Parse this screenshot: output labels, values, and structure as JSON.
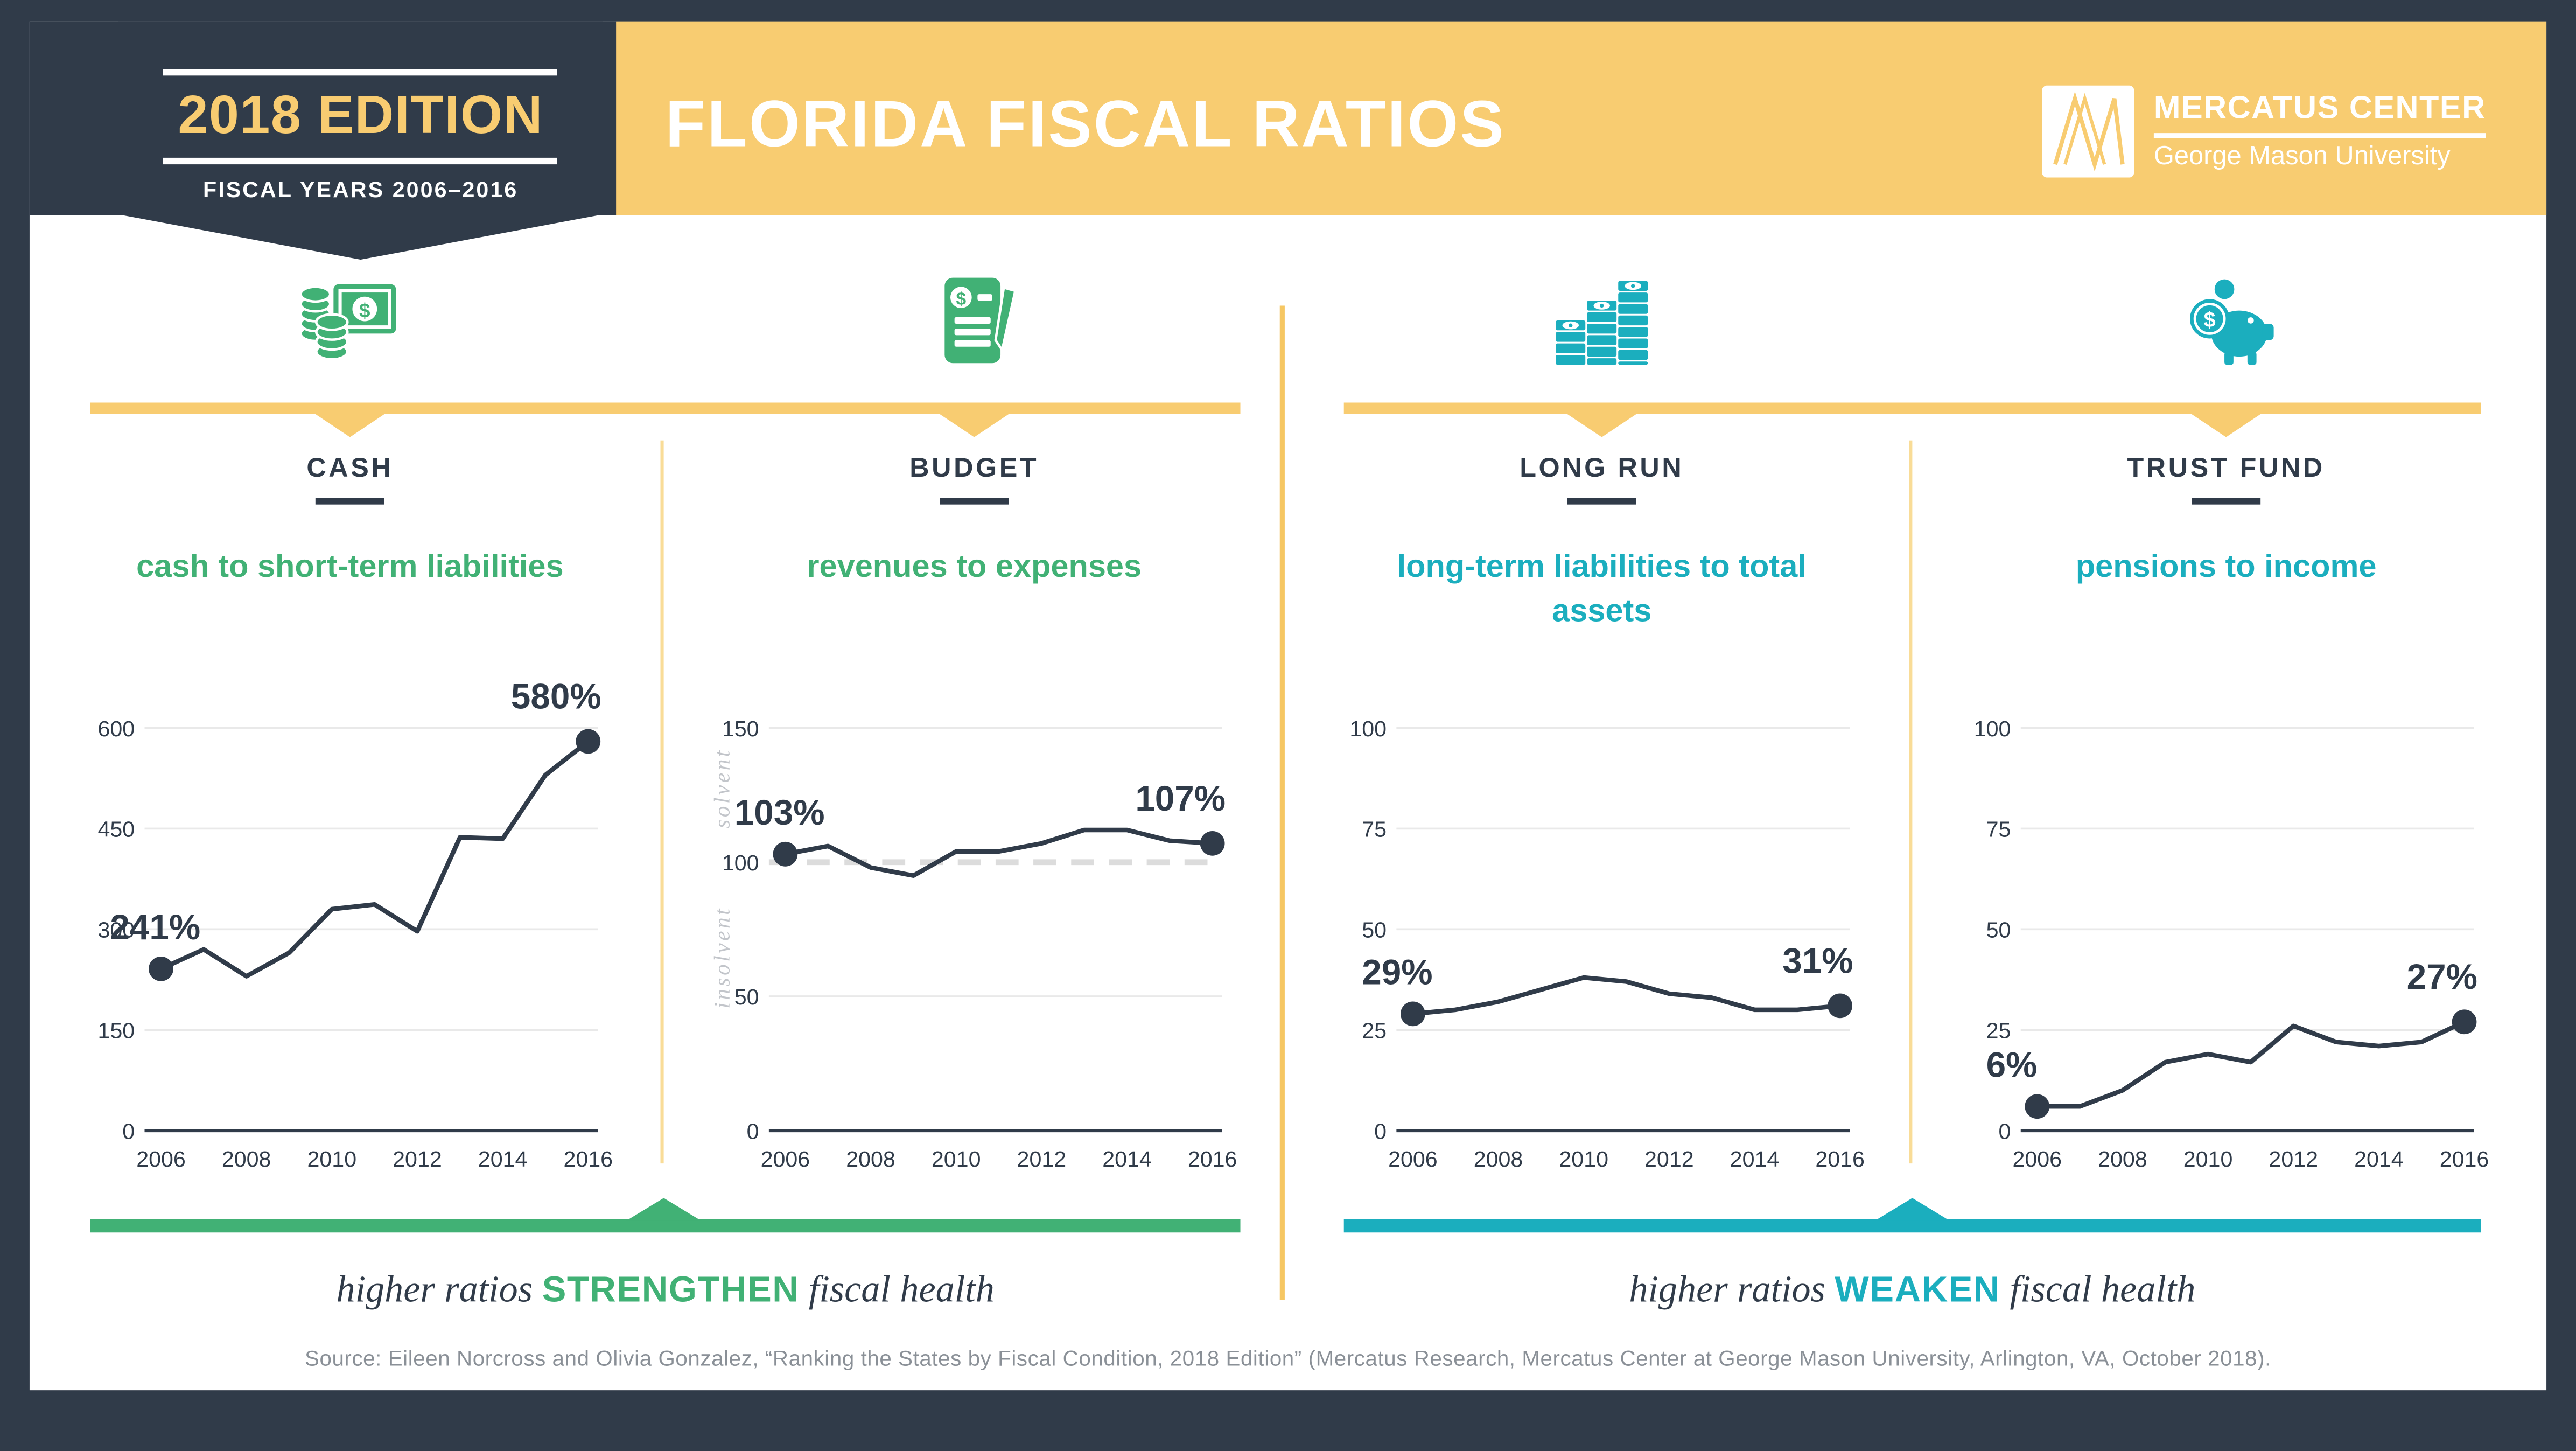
{
  "colors": {
    "navy": "#303B49",
    "yellow": "#F8CC71",
    "green": "#41B175",
    "teal": "#1BAEBE",
    "gridline": "#E9E9E9",
    "dashed_line": "#DCDCDC",
    "source_gray": "#8A9097"
  },
  "ribbon": {
    "title": "2018 EDITION",
    "subtitle": "FISCAL YEARS 2006–2016"
  },
  "header": {
    "title": "FLORIDA FISCAL RATIOS",
    "logo": {
      "line1": "MERCATUS CENTER",
      "line2": "George Mason University"
    }
  },
  "sections": [
    {
      "id": "cash",
      "label": "CASH",
      "subtitle": "cash to short-term liabilities",
      "accent": "green",
      "icon": "coins-and-dollar-bill"
    },
    {
      "id": "budget",
      "label": "BUDGET",
      "subtitle": "revenues to expenses",
      "accent": "green",
      "icon": "ledger-document-and-pen"
    },
    {
      "id": "long-run",
      "label": "LONG RUN",
      "subtitle": "long-term liabilities to total assets",
      "accent": "teal",
      "icon": "ascending-cash-stacks"
    },
    {
      "id": "trust-fund",
      "label": "TRUST FUND",
      "subtitle": "pensions to income",
      "accent": "teal",
      "icon": "piggy-bank-with-coin"
    }
  ],
  "chart_data": [
    {
      "type": "line",
      "section": "CASH",
      "title": "cash to short-term liabilities",
      "x": [
        2006,
        2007,
        2008,
        2009,
        2010,
        2011,
        2012,
        2013,
        2014,
        2015,
        2016
      ],
      "values": [
        241,
        270,
        230,
        265,
        330,
        337,
        297,
        437,
        435,
        530,
        580
      ],
      "y_ticks": [
        0,
        150,
        300,
        450,
        600
      ],
      "ylim": [
        0,
        600
      ],
      "grid": true,
      "x_tick_labels": [
        "2006",
        "2008",
        "2010",
        "2012",
        "2014",
        "2016"
      ],
      "first_label": "241%",
      "last_label": "580%"
    },
    {
      "type": "line",
      "section": "BUDGET",
      "title": "revenues to expenses",
      "x": [
        2006,
        2007,
        2008,
        2009,
        2010,
        2011,
        2012,
        2013,
        2014,
        2015,
        2016
      ],
      "values": [
        103,
        106,
        98,
        95,
        104,
        104,
        107,
        112,
        112,
        108,
        107
      ],
      "y_ticks": [
        0,
        50,
        100,
        150
      ],
      "ylim": [
        0,
        150
      ],
      "grid": true,
      "dashed_at": 100,
      "zone_labels": {
        "above": "solvent",
        "below": "insolvent"
      },
      "x_tick_labels": [
        "2006",
        "2008",
        "2010",
        "2012",
        "2014",
        "2016"
      ],
      "first_label": "103%",
      "last_label": "107%"
    },
    {
      "type": "line",
      "section": "LONG RUN",
      "title": "long-term liabilities to total assets",
      "x": [
        2006,
        2007,
        2008,
        2009,
        2010,
        2011,
        2012,
        2013,
        2014,
        2015,
        2016
      ],
      "values": [
        29,
        30,
        32,
        35,
        38,
        37,
        34,
        33,
        30,
        30,
        31
      ],
      "y_ticks": [
        0,
        25,
        50,
        75,
        100
      ],
      "ylim": [
        0,
        100
      ],
      "grid": true,
      "x_tick_labels": [
        "2006",
        "2008",
        "2010",
        "2012",
        "2014",
        "2016"
      ],
      "first_label": "29%",
      "last_label": "31%"
    },
    {
      "type": "line",
      "section": "TRUST FUND",
      "title": "pensions to income",
      "x": [
        2006,
        2007,
        2008,
        2009,
        2010,
        2011,
        2012,
        2013,
        2014,
        2015,
        2016
      ],
      "values": [
        6,
        6,
        10,
        17,
        19,
        17,
        26,
        22,
        21,
        22,
        27
      ],
      "y_ticks": [
        0,
        25,
        50,
        75,
        100
      ],
      "ylim": [
        0,
        100
      ],
      "grid": true,
      "x_tick_labels": [
        "2006",
        "2008",
        "2010",
        "2012",
        "2014",
        "2016"
      ],
      "first_label": "6%",
      "last_label": "27%"
    }
  ],
  "footers": {
    "left": {
      "pre": "higher ratios ",
      "em": "STRENGTHEN",
      "post": " fiscal health"
    },
    "right": {
      "pre": "higher ratios ",
      "em": "WEAKEN",
      "post": " fiscal health"
    }
  },
  "source": "Source: Eileen Norcross and Olivia Gonzalez, “Ranking the States by Fiscal Condition, 2018 Edition” (Mercatus Research, Mercatus Center at George Mason University, Arlington, VA, October 2018)."
}
